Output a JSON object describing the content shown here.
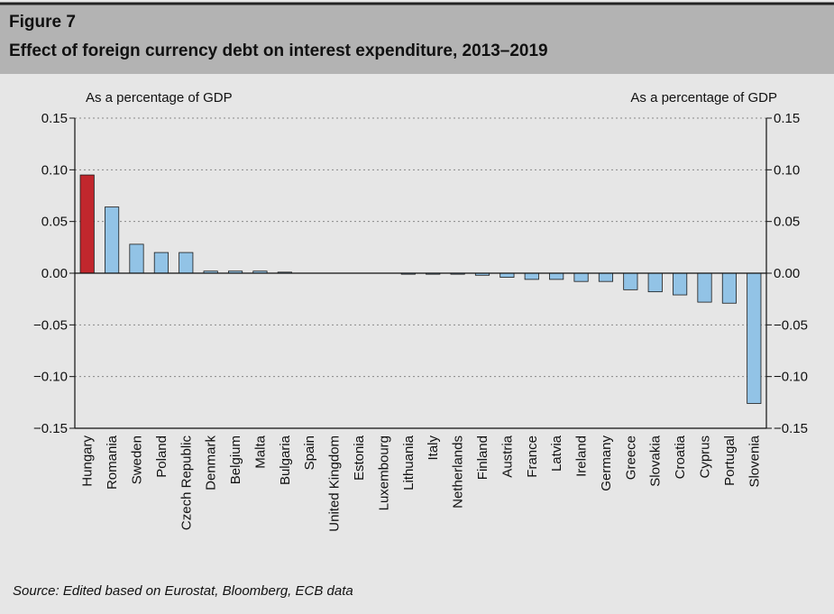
{
  "chart_data": {
    "type": "bar",
    "figure_label": "Figure 7",
    "title": "Effect of foreign currency debt on interest expenditure, 2013–2019",
    "ylabel": "As a percentage of GDP",
    "y2label": "As a percentage of GDP",
    "source": "Source: Edited based on Eurostat, Bloomberg, ECB data",
    "categories": [
      "Hungary",
      "Romania",
      "Sweden",
      "Poland",
      "Czech Republic",
      "Denmark",
      "Belgium",
      "Malta",
      "Bulgaria",
      "Spain",
      "United Kingdom",
      "Estonia",
      "Luxembourg",
      "Lithuania",
      "Italy",
      "Netherlands",
      "Finland",
      "Austria",
      "France",
      "Latvia",
      "Ireland",
      "Germany",
      "Greece",
      "Slovakia",
      "Croatia",
      "Cyprus",
      "Portugal",
      "Slovenia"
    ],
    "values": [
      0.095,
      0.064,
      0.028,
      0.02,
      0.02,
      0.002,
      0.002,
      0.002,
      0.001,
      0,
      0,
      0,
      0,
      -0.001,
      -0.001,
      -0.001,
      -0.002,
      -0.004,
      -0.006,
      -0.006,
      -0.008,
      -0.008,
      -0.016,
      -0.018,
      -0.021,
      -0.028,
      -0.029,
      -0.126
    ],
    "colors": [
      "#c1272d",
      "#92c3e6",
      "#92c3e6",
      "#92c3e6",
      "#92c3e6",
      "#92c3e6",
      "#92c3e6",
      "#92c3e6",
      "#92c3e6",
      "#92c3e6",
      "#92c3e6",
      "#92c3e6",
      "#92c3e6",
      "#92c3e6",
      "#92c3e6",
      "#92c3e6",
      "#92c3e6",
      "#92c3e6",
      "#92c3e6",
      "#92c3e6",
      "#92c3e6",
      "#92c3e6",
      "#92c3e6",
      "#92c3e6",
      "#92c3e6",
      "#92c3e6",
      "#92c3e6",
      "#92c3e6"
    ],
    "ylim": [
      -0.15,
      0.15
    ],
    "yticks": [
      {
        "value": -0.15,
        "label": "−0.15"
      },
      {
        "value": -0.1,
        "label": "−0.10"
      },
      {
        "value": -0.05,
        "label": "−0.05"
      },
      {
        "value": 0,
        "label": "0.00"
      },
      {
        "value": 0.05,
        "label": "0.05"
      },
      {
        "value": 0.1,
        "label": "0.10"
      },
      {
        "value": 0.15,
        "label": "0.15"
      }
    ],
    "y2lim": [
      -0.15,
      0.15
    ],
    "y2ticks": [
      {
        "value": -0.15,
        "label": "−0.15"
      },
      {
        "value": -0.1,
        "label": "−0.10"
      },
      {
        "value": -0.05,
        "label": "−0.05"
      },
      {
        "value": 0,
        "label": "0.00"
      },
      {
        "value": 0.05,
        "label": "0.05"
      },
      {
        "value": 0.1,
        "label": "0.10"
      },
      {
        "value": 0.15,
        "label": "0.15"
      }
    ],
    "grid": true
  }
}
